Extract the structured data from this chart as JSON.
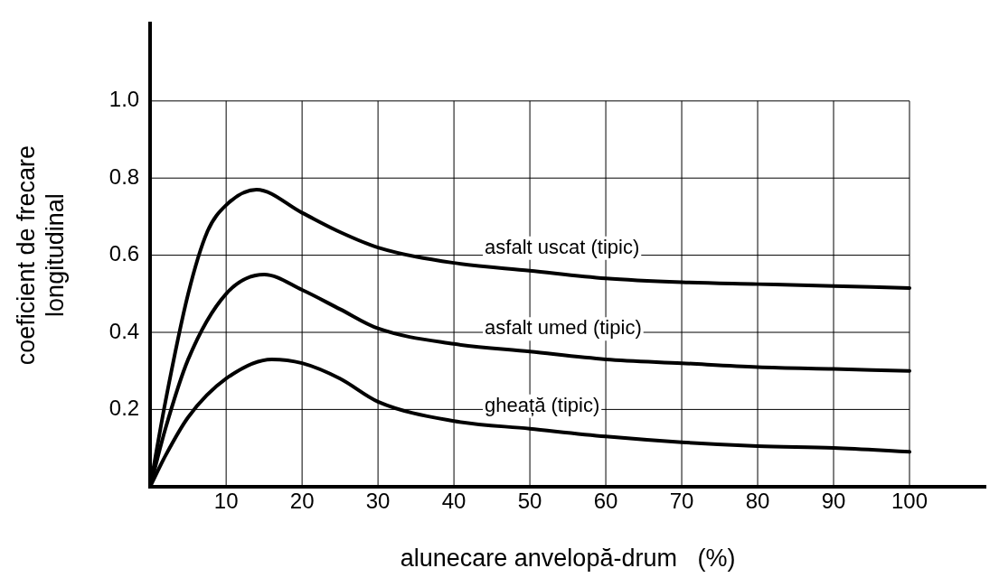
{
  "chart_data": {
    "type": "line",
    "xlabel": "alunecare anvelopă-drum   (%)",
    "ylabel": "coeficient de frecare\nlongitudinal",
    "xlim": [
      0,
      110
    ],
    "ylim": [
      0,
      1.2
    ],
    "xticks": [
      10,
      20,
      30,
      40,
      50,
      60,
      70,
      80,
      90,
      100
    ],
    "yticks": [
      0.2,
      0.4,
      0.6,
      {
        "value": 1,
        "label": "1.0"
      },
      0.8
    ],
    "grid": true,
    "legend": false,
    "marker": "none",
    "line_style": "solid",
    "series": [
      {
        "name": "asfalt uscat (tipic)",
        "color": "#000000",
        "x": [
          0,
          2,
          5,
          7.5,
          10,
          14,
          20,
          25,
          30,
          40,
          50,
          60,
          70,
          80,
          90,
          100
        ],
        "values": [
          0,
          0.22,
          0.5,
          0.66,
          0.73,
          0.77,
          0.71,
          0.66,
          0.62,
          0.58,
          0.56,
          0.54,
          0.53,
          0.525,
          0.52,
          0.515
        ]
      },
      {
        "name": "asfalt umed (tipic)",
        "color": "#000000",
        "x": [
          0,
          2,
          5,
          10,
          15,
          20,
          25,
          30,
          40,
          50,
          60,
          70,
          80,
          90,
          100
        ],
        "values": [
          0,
          0.15,
          0.33,
          0.5,
          0.55,
          0.51,
          0.46,
          0.41,
          0.37,
          0.35,
          0.33,
          0.32,
          0.31,
          0.305,
          0.3
        ]
      },
      {
        "name": "gheață (tipic)",
        "color": "#000000",
        "x": [
          0,
          2,
          5,
          10,
          16,
          20,
          25,
          30,
          40,
          50,
          60,
          70,
          80,
          90,
          100
        ],
        "values": [
          0,
          0.08,
          0.18,
          0.28,
          0.33,
          0.32,
          0.28,
          0.22,
          0.17,
          0.15,
          0.13,
          0.115,
          0.105,
          0.1,
          0.09
        ]
      }
    ]
  }
}
